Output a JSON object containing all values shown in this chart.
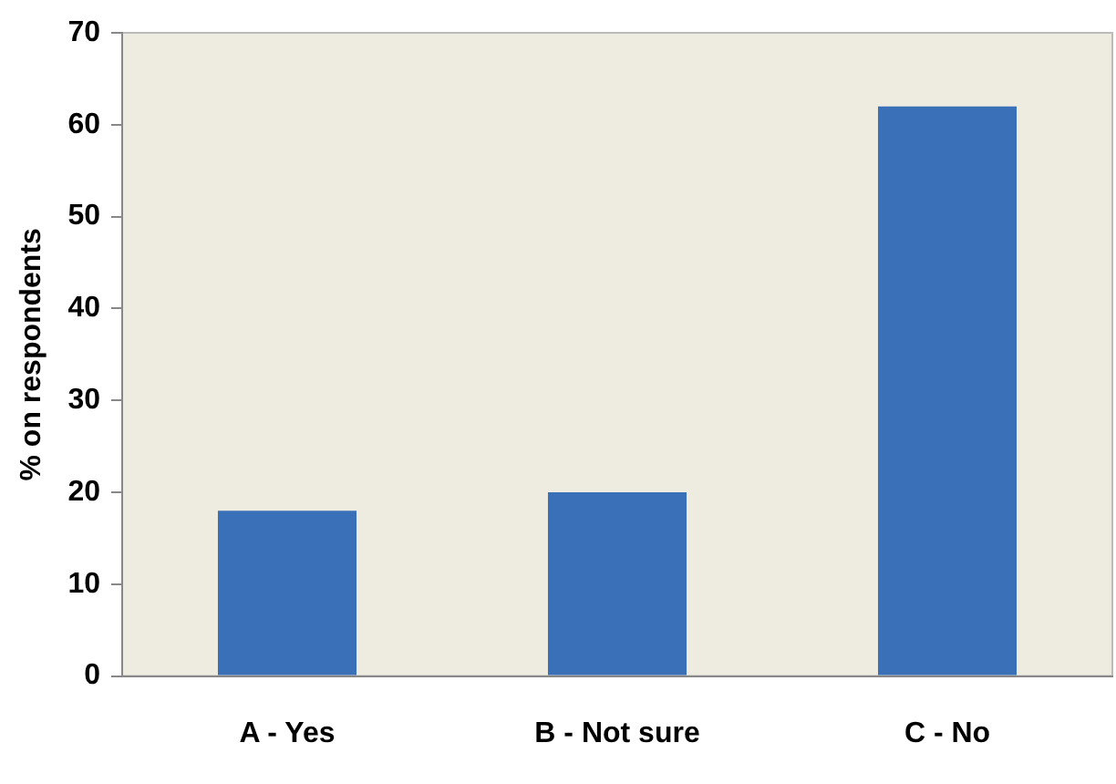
{
  "chart_data": {
    "type": "bar",
    "ylabel": "% on respondents",
    "categories": [
      "A - Yes",
      "B - Not sure",
      "C - No"
    ],
    "values": [
      18,
      20,
      62
    ],
    "color": "#3a70b8",
    "ylim": [
      0,
      70
    ],
    "yticks": [
      0,
      10,
      20,
      30,
      40,
      50,
      60,
      70
    ],
    "grid": false,
    "legend": false
  }
}
